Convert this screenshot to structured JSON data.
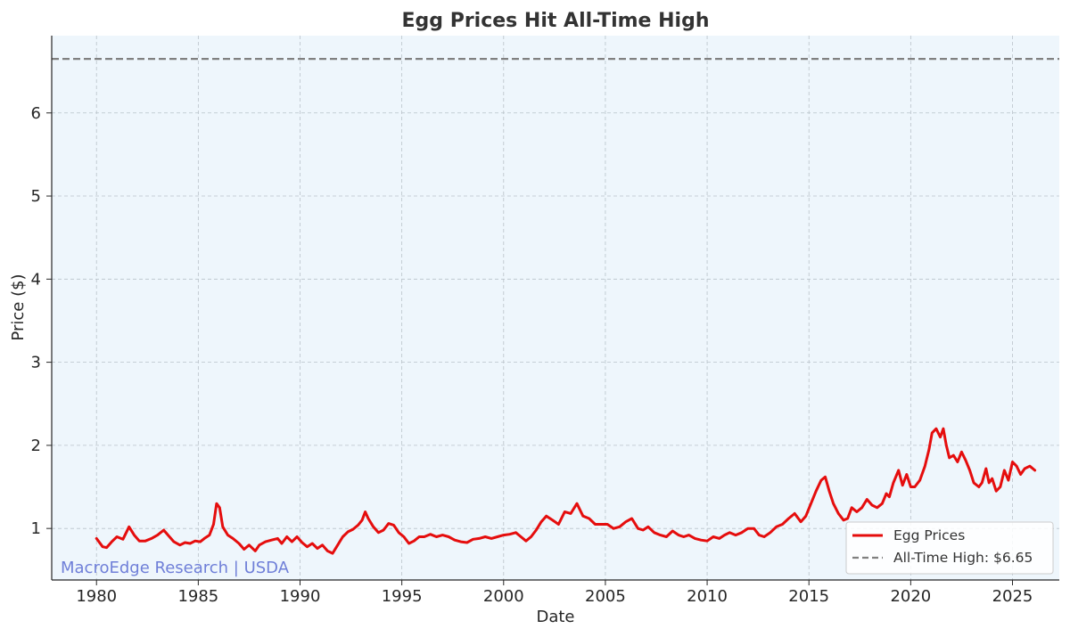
{
  "chart_data": {
    "type": "line",
    "title": "Egg Prices Hit All-Time High",
    "xlabel": "Date",
    "ylabel": "Price ($)",
    "xlim": [
      1977.8,
      2027.3
    ],
    "ylim": [
      0.38,
      6.93
    ],
    "x_ticks": [
      "1980",
      "1985",
      "1990",
      "1995",
      "2000",
      "2005",
      "2010",
      "2015",
      "2020",
      "2025"
    ],
    "y_ticks": [
      "1",
      "2",
      "3",
      "4",
      "5",
      "6"
    ],
    "grid": true,
    "legend_position": "lower-right",
    "watermark": "MacroEdge Research | USDA",
    "colors": {
      "background": "#eef6fc",
      "series": "#e50d0d",
      "reference": "#808080",
      "watermark": "#6f7fd8"
    },
    "series": [
      {
        "name": "Egg Prices",
        "style": "solid",
        "points": [
          [
            1980.0,
            0.88
          ],
          [
            1980.3,
            0.78
          ],
          [
            1980.5,
            0.77
          ],
          [
            1980.75,
            0.84
          ],
          [
            1981.0,
            0.9
          ],
          [
            1981.3,
            0.87
          ],
          [
            1981.6,
            1.02
          ],
          [
            1981.85,
            0.92
          ],
          [
            1982.1,
            0.85
          ],
          [
            1982.4,
            0.85
          ],
          [
            1982.7,
            0.88
          ],
          [
            1983.0,
            0.92
          ],
          [
            1983.3,
            0.98
          ],
          [
            1983.55,
            0.91
          ],
          [
            1983.8,
            0.84
          ],
          [
            1984.1,
            0.8
          ],
          [
            1984.35,
            0.83
          ],
          [
            1984.6,
            0.82
          ],
          [
            1984.85,
            0.85
          ],
          [
            1985.1,
            0.84
          ],
          [
            1985.3,
            0.88
          ],
          [
            1985.55,
            0.92
          ],
          [
            1985.75,
            1.05
          ],
          [
            1985.9,
            1.3
          ],
          [
            1986.05,
            1.25
          ],
          [
            1986.2,
            1.02
          ],
          [
            1986.45,
            0.92
          ],
          [
            1986.7,
            0.88
          ],
          [
            1987.0,
            0.82
          ],
          [
            1987.25,
            0.75
          ],
          [
            1987.5,
            0.8
          ],
          [
            1987.8,
            0.73
          ],
          [
            1988.0,
            0.8
          ],
          [
            1988.3,
            0.84
          ],
          [
            1988.6,
            0.86
          ],
          [
            1988.9,
            0.88
          ],
          [
            1989.1,
            0.82
          ],
          [
            1989.35,
            0.9
          ],
          [
            1989.6,
            0.84
          ],
          [
            1989.85,
            0.9
          ],
          [
            1990.1,
            0.83
          ],
          [
            1990.35,
            0.78
          ],
          [
            1990.6,
            0.82
          ],
          [
            1990.85,
            0.76
          ],
          [
            1991.1,
            0.8
          ],
          [
            1991.35,
            0.73
          ],
          [
            1991.6,
            0.7
          ],
          [
            1991.85,
            0.8
          ],
          [
            1992.1,
            0.9
          ],
          [
            1992.35,
            0.96
          ],
          [
            1992.6,
            0.99
          ],
          [
            1992.85,
            1.04
          ],
          [
            1993.05,
            1.1
          ],
          [
            1993.2,
            1.2
          ],
          [
            1993.35,
            1.12
          ],
          [
            1993.6,
            1.02
          ],
          [
            1993.85,
            0.95
          ],
          [
            1994.1,
            0.98
          ],
          [
            1994.35,
            1.06
          ],
          [
            1994.6,
            1.04
          ],
          [
            1994.85,
            0.95
          ],
          [
            1995.1,
            0.9
          ],
          [
            1995.35,
            0.82
          ],
          [
            1995.6,
            0.85
          ],
          [
            1995.85,
            0.9
          ],
          [
            1996.1,
            0.9
          ],
          [
            1996.4,
            0.93
          ],
          [
            1996.7,
            0.9
          ],
          [
            1997.0,
            0.92
          ],
          [
            1997.3,
            0.9
          ],
          [
            1997.6,
            0.86
          ],
          [
            1997.9,
            0.84
          ],
          [
            1998.2,
            0.83
          ],
          [
            1998.5,
            0.87
          ],
          [
            1998.8,
            0.88
          ],
          [
            1999.1,
            0.9
          ],
          [
            1999.4,
            0.88
          ],
          [
            1999.7,
            0.9
          ],
          [
            2000.0,
            0.92
          ],
          [
            2000.3,
            0.93
          ],
          [
            2000.6,
            0.95
          ],
          [
            2000.85,
            0.9
          ],
          [
            2001.1,
            0.85
          ],
          [
            2001.35,
            0.9
          ],
          [
            2001.6,
            0.98
          ],
          [
            2001.85,
            1.08
          ],
          [
            2002.1,
            1.15
          ],
          [
            2002.4,
            1.1
          ],
          [
            2002.7,
            1.05
          ],
          [
            2003.0,
            1.2
          ],
          [
            2003.3,
            1.18
          ],
          [
            2003.6,
            1.3
          ],
          [
            2003.9,
            1.15
          ],
          [
            2004.2,
            1.12
          ],
          [
            2004.5,
            1.05
          ],
          [
            2004.8,
            1.05
          ],
          [
            2005.1,
            1.05
          ],
          [
            2005.4,
            1.0
          ],
          [
            2005.7,
            1.02
          ],
          [
            2006.0,
            1.08
          ],
          [
            2006.3,
            1.12
          ],
          [
            2006.6,
            1.0
          ],
          [
            2006.85,
            0.98
          ],
          [
            2007.1,
            1.02
          ],
          [
            2007.4,
            0.95
          ],
          [
            2007.7,
            0.92
          ],
          [
            2008.0,
            0.9
          ],
          [
            2008.3,
            0.97
          ],
          [
            2008.6,
            0.92
          ],
          [
            2008.85,
            0.9
          ],
          [
            2009.1,
            0.92
          ],
          [
            2009.4,
            0.88
          ],
          [
            2009.7,
            0.86
          ],
          [
            2010.0,
            0.85
          ],
          [
            2010.3,
            0.9
          ],
          [
            2010.6,
            0.88
          ],
          [
            2010.85,
            0.92
          ],
          [
            2011.1,
            0.95
          ],
          [
            2011.4,
            0.92
          ],
          [
            2011.7,
            0.95
          ],
          [
            2012.0,
            1.0
          ],
          [
            2012.3,
            1.0
          ],
          [
            2012.55,
            0.92
          ],
          [
            2012.8,
            0.9
          ],
          [
            2013.1,
            0.95
          ],
          [
            2013.4,
            1.02
          ],
          [
            2013.7,
            1.05
          ],
          [
            2014.0,
            1.12
          ],
          [
            2014.3,
            1.18
          ],
          [
            2014.6,
            1.08
          ],
          [
            2014.85,
            1.15
          ],
          [
            2015.1,
            1.3
          ],
          [
            2015.35,
            1.45
          ],
          [
            2015.6,
            1.58
          ],
          [
            2015.8,
            1.62
          ],
          [
            2016.0,
            1.45
          ],
          [
            2016.2,
            1.3
          ],
          [
            2016.45,
            1.18
          ],
          [
            2016.7,
            1.1
          ],
          [
            2016.9,
            1.12
          ],
          [
            2017.1,
            1.25
          ],
          [
            2017.35,
            1.2
          ],
          [
            2017.6,
            1.25
          ],
          [
            2017.85,
            1.35
          ],
          [
            2018.1,
            1.28
          ],
          [
            2018.35,
            1.25
          ],
          [
            2018.6,
            1.3
          ],
          [
            2018.8,
            1.42
          ],
          [
            2018.95,
            1.38
          ],
          [
            2019.15,
            1.55
          ],
          [
            2019.4,
            1.7
          ],
          [
            2019.6,
            1.52
          ],
          [
            2019.8,
            1.65
          ],
          [
            2020.0,
            1.5
          ],
          [
            2020.2,
            1.5
          ],
          [
            2020.45,
            1.58
          ],
          [
            2020.7,
            1.75
          ],
          [
            2020.9,
            1.95
          ],
          [
            2021.05,
            2.15
          ],
          [
            2021.25,
            2.2
          ],
          [
            2021.45,
            2.1
          ],
          [
            2021.6,
            2.2
          ],
          [
            2021.75,
            2.0
          ],
          [
            2021.9,
            1.85
          ],
          [
            2022.1,
            1.88
          ],
          [
            2022.3,
            1.8
          ],
          [
            2022.5,
            1.92
          ],
          [
            2022.7,
            1.82
          ],
          [
            2022.9,
            1.7
          ],
          [
            2023.1,
            1.55
          ],
          [
            2023.35,
            1.5
          ],
          [
            2023.5,
            1.55
          ],
          [
            2023.7,
            1.72
          ],
          [
            2023.85,
            1.55
          ],
          [
            2024.0,
            1.6
          ],
          [
            2024.2,
            1.45
          ],
          [
            2024.4,
            1.5
          ],
          [
            2024.6,
            1.7
          ],
          [
            2024.8,
            1.58
          ],
          [
            2025.0,
            1.8
          ],
          [
            2025.2,
            1.75
          ],
          [
            2025.4,
            1.65
          ],
          [
            2025.6,
            1.72
          ],
          [
            2025.85,
            1.75
          ],
          [
            2026.1,
            1.7
          ]
        ]
      },
      {
        "name": "All-Time High: $6.65",
        "style": "dashed",
        "value": 6.65
      }
    ]
  }
}
